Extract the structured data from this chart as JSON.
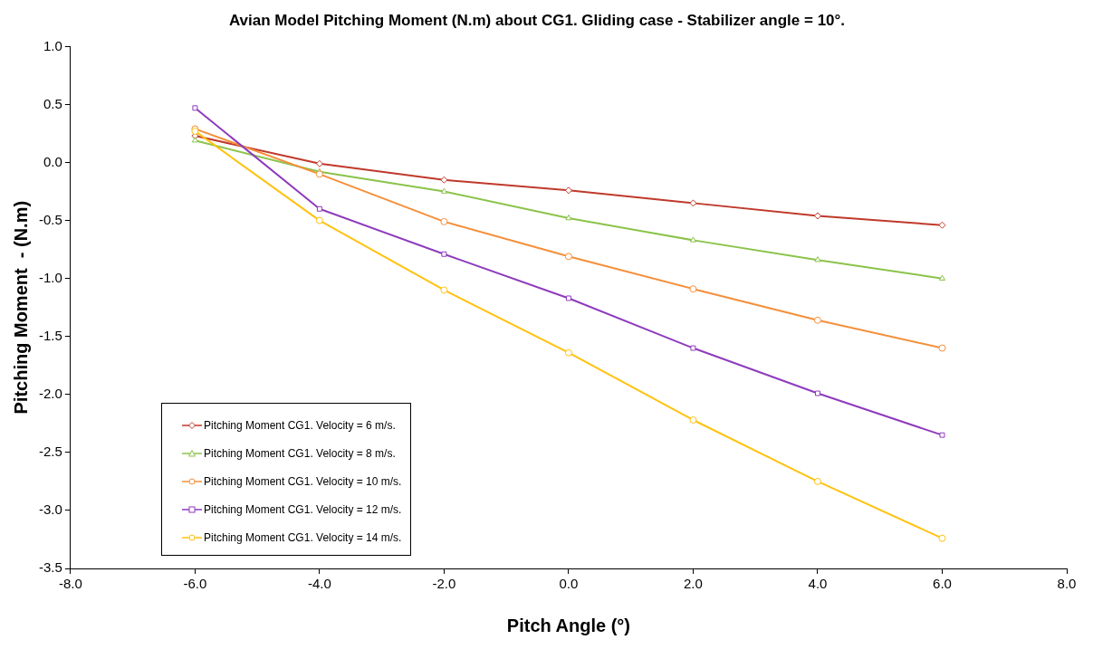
{
  "chart_data": {
    "type": "line",
    "title": "Avian Model Pitching Moment (N.m) about CG1. Gliding case - Stabilizer angle = 10°.",
    "xlabel": "Pitch Angle (°)",
    "ylabel": "Pitching Moment  - (N.m)",
    "x": [
      -6,
      -4,
      -2,
      0,
      2,
      4,
      6
    ],
    "xlim": [
      -8,
      8
    ],
    "xticks": [
      {
        "value": -8,
        "label": "-8.0"
      },
      {
        "value": -6,
        "label": "-6.0"
      },
      {
        "value": -4,
        "label": "-4.0"
      },
      {
        "value": -2,
        "label": "-2.0"
      },
      {
        "value": 0,
        "label": "0.0"
      },
      {
        "value": 2,
        "label": "2.0"
      },
      {
        "value": 4,
        "label": "4.0"
      },
      {
        "value": 6,
        "label": "6.0"
      },
      {
        "value": 8,
        "label": "8.0"
      }
    ],
    "ylim": [
      -3.5,
      1
    ],
    "yticks": [
      {
        "value": -3.5,
        "label": "-3.5"
      },
      {
        "value": -3,
        "label": "-3.0"
      },
      {
        "value": -2.5,
        "label": "-2.5"
      },
      {
        "value": -2,
        "label": "-2.0"
      },
      {
        "value": -1.5,
        "label": "-1.5"
      },
      {
        "value": -1,
        "label": "-1.0"
      },
      {
        "value": -0.5,
        "label": "-0.5"
      },
      {
        "value": 0,
        "label": "0.0"
      },
      {
        "value": 0.5,
        "label": "0.5"
      },
      {
        "value": 1,
        "label": "1.0"
      }
    ],
    "grid": false,
    "legend": "bottom left",
    "line_style": "solid",
    "series": [
      {
        "name": "Pitching Moment CG1. Velocity = 6 m/s.",
        "color": "#c0392b",
        "marker": "diamond",
        "values": [
          0.23,
          -0.01,
          -0.15,
          -0.24,
          -0.35,
          -0.46,
          -0.54
        ]
      },
      {
        "name": "Pitching Moment CG1. Velocity = 8 m/s.",
        "color": "#8bc34a",
        "marker": "triangle",
        "values": [
          0.19,
          -0.08,
          -0.25,
          -0.48,
          -0.67,
          -0.84,
          -1.0
        ]
      },
      {
        "name": "Pitching Moment CG1. Velocity = 10 m/s.",
        "color": "#f58f3a",
        "marker": "circle",
        "values": [
          0.29,
          -0.1,
          -0.51,
          -0.81,
          -1.09,
          -1.36,
          -1.6
        ]
      },
      {
        "name": "Pitching Moment CG1. Velocity = 12 m/s.",
        "color": "#8e3bbd",
        "marker": "square",
        "values": [
          0.47,
          -0.4,
          -0.79,
          -1.17,
          -1.6,
          -1.99,
          -2.35
        ]
      },
      {
        "name": "Pitching Moment CG1. Velocity = 14 m/s.",
        "color": "#ffc20e",
        "marker": "circle",
        "values": [
          0.27,
          -0.5,
          -1.1,
          -1.64,
          -2.22,
          -2.75,
          -3.24
        ]
      }
    ]
  }
}
